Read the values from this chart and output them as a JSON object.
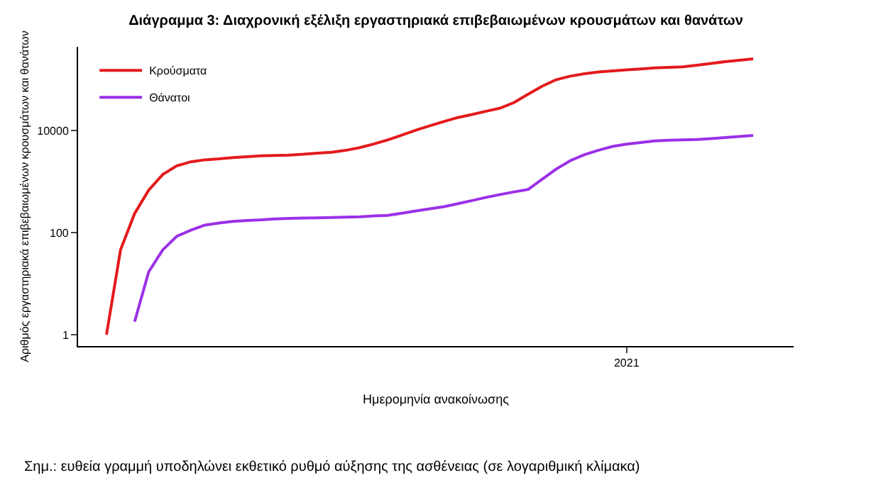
{
  "chart_data": {
    "type": "line",
    "title": "Διάγραμμα 3: Διαχρονική εξέλιξη εργαστηριακά επιβεβαιωμένων κρουσμάτων και θανάτων",
    "xlabel": "Ημερομηνία ανακοίνωσης",
    "ylabel": "Αριθμός εργαστηριακά επιβεβαιωμένων κρουσμάτων και θανάτων",
    "annotations": [
      "Σημ.: ευθεία γραμμή υποδηλώνει εκθετικό ρυθμό αύξησης της ασθένειας (σε λογαριθμική κλίμακα)"
    ],
    "log": "y",
    "grid": false,
    "legend": "top left",
    "marker": "none",
    "line_style": "solid",
    "categories": [
      null,
      null,
      null,
      null,
      null,
      null,
      null,
      null,
      null,
      null,
      null,
      null,
      null,
      null,
      null,
      null,
      null,
      null,
      null,
      null,
      null,
      null,
      null,
      null,
      null,
      null,
      null,
      null,
      null,
      null,
      null,
      null,
      null,
      null,
      null,
      null,
      null,
      "2021",
      null,
      null,
      null,
      null,
      null,
      null,
      null,
      null,
      null
    ],
    "ylim": [
      0.6,
      440000
    ],
    "yticks": [
      1,
      100,
      10000
    ],
    "series": [
      {
        "name": "Κρούσματα",
        "color": "#e41a1c",
        "values": [
          1,
          46,
          237,
          680,
          1380,
          2040,
          2450,
          2680,
          2800,
          2970,
          3080,
          3200,
          3250,
          3320,
          3440,
          3620,
          3780,
          4100,
          4630,
          5460,
          6570,
          8150,
          10200,
          12500,
          15100,
          18100,
          20700,
          24000,
          27600,
          35700,
          52000,
          74600,
          100000,
          117000,
          130000,
          141000,
          148000,
          155000,
          162000,
          170000,
          174000,
          178000,
          191000,
          208000,
          225000,
          240000,
          256000
        ]
      },
      {
        "name": "Θάνατοι",
        "color": "#9b30e8",
        "values": [
          null,
          null,
          1.8,
          17,
          46,
          85,
          112,
          141,
          155,
          166,
          173,
          178,
          186,
          190,
          193,
          195,
          199,
          201,
          204,
          213,
          219,
          240,
          267,
          294,
          323,
          370,
          426,
          491,
          559,
          630,
          705,
          1120,
          1770,
          2590,
          3390,
          4140,
          4900,
          5460,
          5850,
          6310,
          6500,
          6600,
          6700,
          6960,
          7300,
          7700,
          8070
        ]
      }
    ]
  }
}
